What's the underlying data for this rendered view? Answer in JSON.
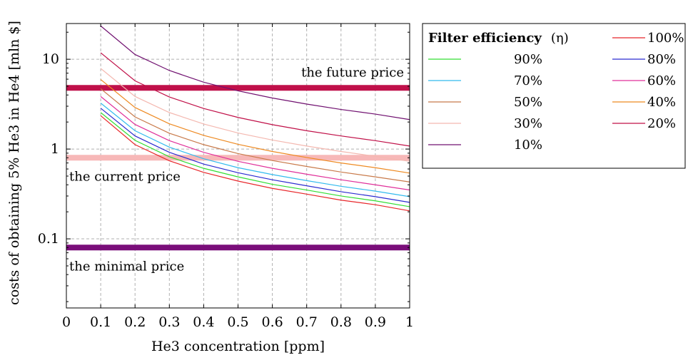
{
  "chart_data": {
    "type": "line",
    "xlabel": "He3 concentration [ppm]",
    "ylabel": "costs of obtaining 5% He3 in He4 [mln $]",
    "x_scale": "linear",
    "y_scale": "log",
    "xlim": [
      0,
      1
    ],
    "ylim": [
      0.017,
      25
    ],
    "grid": true,
    "x_ticks": [
      "0",
      "0.1",
      "0.2",
      "0.3",
      "0.4",
      "0.5",
      "0.6",
      "0.7",
      "0.8",
      "0.9",
      "1"
    ],
    "y_ticks": [
      "0.1",
      "1",
      "10"
    ],
    "x": [
      0.1,
      0.2,
      0.3,
      0.4,
      0.5,
      0.6,
      0.7,
      0.8,
      0.9,
      1.0
    ],
    "legend": {
      "title_bold": "Filter efficiency",
      "title_rest": "(η)",
      "placement": "outside right"
    },
    "series": [
      {
        "name": "100%",
        "color": "#e8262a",
        "values": [
          2.35,
          1.12,
          0.74,
          0.55,
          0.44,
          0.365,
          0.315,
          0.27,
          0.24,
          0.205
        ]
      },
      {
        "name": "90%",
        "color": "#33dd33",
        "values": [
          2.55,
          1.25,
          0.82,
          0.61,
          0.49,
          0.405,
          0.35,
          0.3,
          0.265,
          0.228
        ]
      },
      {
        "name": "80%",
        "color": "#2b2bd0",
        "values": [
          2.85,
          1.4,
          0.92,
          0.68,
          0.545,
          0.455,
          0.39,
          0.335,
          0.295,
          0.255
        ]
      },
      {
        "name": "70%",
        "color": "#33bbee",
        "values": [
          3.25,
          1.6,
          1.05,
          0.78,
          0.62,
          0.52,
          0.445,
          0.385,
          0.34,
          0.295
        ]
      },
      {
        "name": "60%",
        "color": "#e0309a",
        "values": [
          3.85,
          1.88,
          1.24,
          0.92,
          0.73,
          0.61,
          0.525,
          0.455,
          0.4,
          0.35
        ]
      },
      {
        "name": "50%",
        "color": "#c87a4a",
        "values": [
          4.7,
          2.28,
          1.5,
          1.12,
          0.89,
          0.745,
          0.64,
          0.555,
          0.49,
          0.43
        ]
      },
      {
        "name": "40%",
        "color": "#ee8a22",
        "values": [
          5.95,
          2.9,
          1.91,
          1.42,
          1.13,
          0.94,
          0.805,
          0.7,
          0.62,
          0.54
        ]
      },
      {
        "name": "30%",
        "color": "#f4b8b0",
        "values": [
          7.9,
          3.85,
          2.55,
          1.9,
          1.51,
          1.26,
          1.08,
          0.94,
          0.83,
          0.73
        ]
      },
      {
        "name": "20%",
        "color": "#c01048",
        "values": [
          11.8,
          5.75,
          3.8,
          2.83,
          2.25,
          1.87,
          1.6,
          1.4,
          1.24,
          1.08
        ]
      },
      {
        "name": "10%",
        "color": "#701070",
        "values": [
          23.5,
          11.3,
          7.5,
          5.55,
          4.45,
          3.7,
          3.17,
          2.76,
          2.45,
          2.13
        ]
      }
    ],
    "price_lines": [
      {
        "label": "the future price",
        "value": 4.8,
        "color": "#c0104a",
        "label_pos": "above-right"
      },
      {
        "label": "the current price",
        "value": 0.8,
        "color": "#f7b8b8",
        "label_pos": "below-left"
      },
      {
        "label": "the minimal price",
        "value": 0.08,
        "color": "#7a0e7a",
        "label_pos": "below-left"
      }
    ]
  }
}
